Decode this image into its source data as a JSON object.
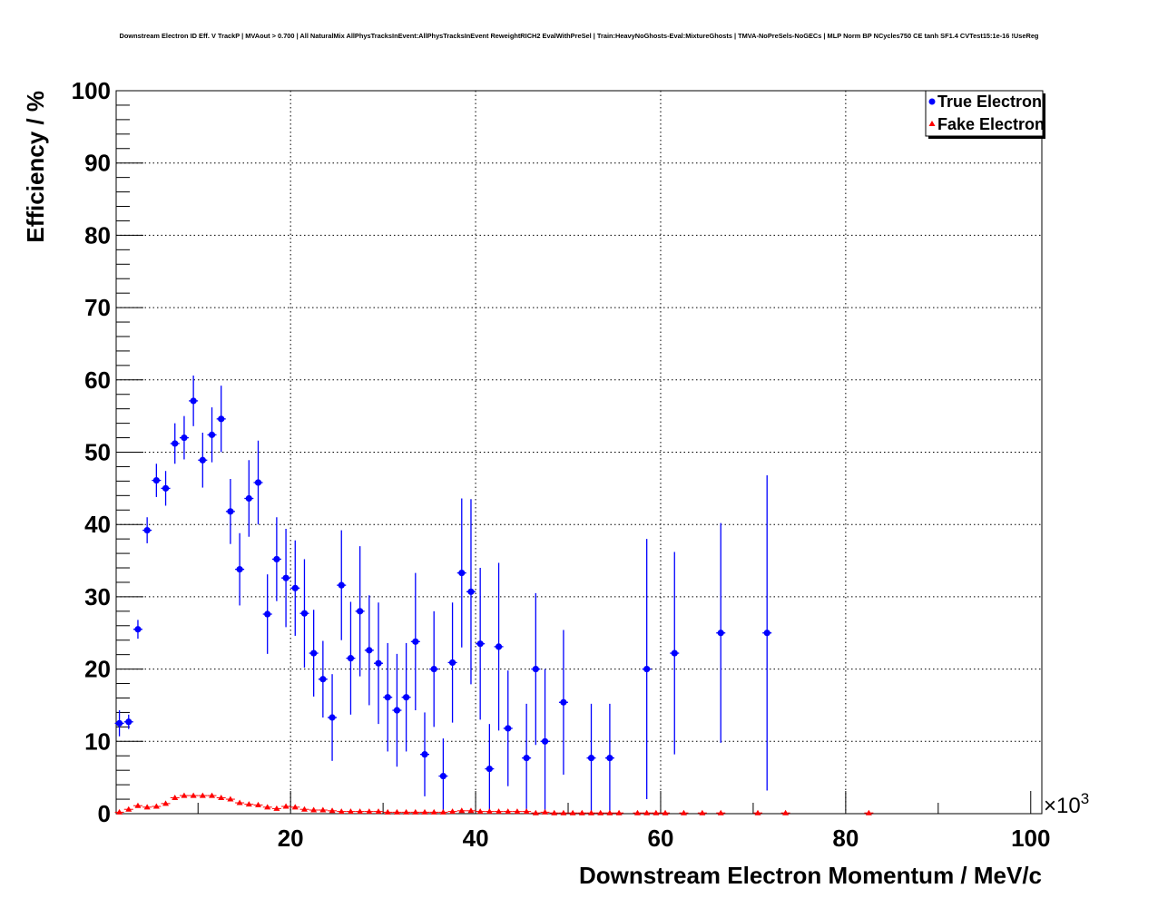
{
  "chart_data": {
    "type": "scatter",
    "title": "Downstream Electron ID Eff. V TrackP | MVAout > 0.700 | All NaturalMix AllPhysTracksInEvent:AllPhysTracksInEvent ReweightRICH2 EvalWithPreSel | Train:HeavyNoGhosts-Eval:MixtureGhosts | TMVA-NoPreSels-NoGECs | MLP Norm BP NCycles750 CE tanh SF1.4 CVTest15:1e-16 !UseReg",
    "xlabel": "Downstream Electron Momentum / MeV/c",
    "ylabel": "Efficiency / %",
    "x_multiplier": "×10",
    "x_multiplier_exp": "3",
    "xlim": [
      1.15,
      101.2
    ],
    "ylim": [
      0,
      100
    ],
    "xticks": [
      "20",
      "40",
      "60",
      "80",
      "100"
    ],
    "yticks": [
      "0",
      "10",
      "20",
      "30",
      "40",
      "50",
      "60",
      "70",
      "80",
      "90",
      "100"
    ],
    "grid": true,
    "legend_position": "top-right",
    "series": [
      {
        "name": "True Electron",
        "color": "#0000ff",
        "marker": "circle",
        "points": [
          [
            1.5,
            12.5,
            1.8
          ],
          [
            2.5,
            12.7,
            1
          ],
          [
            3.5,
            25.5,
            1.3
          ],
          [
            4.5,
            39.2,
            1.8
          ],
          [
            5.5,
            46.1,
            2.3
          ],
          [
            6.5,
            45.0,
            2.4
          ],
          [
            7.5,
            51.2,
            2.8
          ],
          [
            8.5,
            52.0,
            3
          ],
          [
            9.5,
            57.1,
            3.5
          ],
          [
            10.5,
            48.9,
            3.8
          ],
          [
            11.5,
            52.4,
            3.8
          ],
          [
            12.5,
            54.6,
            4.6
          ],
          [
            13.5,
            41.8,
            4.5
          ],
          [
            14.5,
            33.8,
            5
          ],
          [
            15.5,
            43.6,
            5.3
          ],
          [
            16.5,
            45.8,
            5.8
          ],
          [
            17.5,
            27.6,
            5.5
          ],
          [
            18.5,
            35.2,
            5.8
          ],
          [
            19.5,
            32.6,
            6.8
          ],
          [
            20.5,
            31.2,
            6.6
          ],
          [
            21.5,
            27.7,
            7.5
          ],
          [
            22.5,
            22.2,
            6
          ],
          [
            23.5,
            18.6,
            5.3
          ],
          [
            24.5,
            13.3,
            6
          ],
          [
            25.5,
            31.6,
            7.6
          ],
          [
            26.5,
            21.5,
            7.8
          ],
          [
            27.5,
            28.0,
            9
          ],
          [
            28.5,
            22.6,
            7.6
          ],
          [
            29.5,
            20.8,
            8.4
          ],
          [
            30.5,
            16.1,
            7.5
          ],
          [
            31.5,
            14.3,
            7.8
          ],
          [
            32.5,
            16.1,
            7.5
          ],
          [
            33.5,
            23.8,
            9.5
          ],
          [
            34.5,
            8.2,
            5.8
          ],
          [
            35.5,
            20.0,
            8
          ],
          [
            36.5,
            5.2,
            5.2
          ],
          [
            37.5,
            20.9,
            8.3
          ],
          [
            38.5,
            33.3,
            10.3
          ],
          [
            39.5,
            30.7,
            12.8
          ],
          [
            40.5,
            23.5,
            10.5
          ],
          [
            41.5,
            6.2,
            6.2
          ],
          [
            42.5,
            23.1,
            11.6
          ],
          [
            43.5,
            11.8,
            8
          ],
          [
            45.5,
            7.7,
            7.5
          ],
          [
            46.5,
            20.0,
            10.5
          ],
          [
            47.5,
            10.0,
            10
          ],
          [
            49.5,
            15.4,
            10
          ],
          [
            52.5,
            7.7,
            7.5
          ],
          [
            54.5,
            7.7,
            7.5
          ],
          [
            58.5,
            20.0,
            18
          ],
          [
            61.5,
            22.2,
            14
          ],
          [
            66.5,
            25.0,
            15.2
          ],
          [
            71.5,
            25.0,
            21.8
          ]
        ]
      },
      {
        "name": "Fake Electron",
        "color": "#ff0000",
        "marker": "triangle",
        "points": [
          [
            1.5,
            0.2
          ],
          [
            2.5,
            0.6
          ],
          [
            3.5,
            1.1
          ],
          [
            4.5,
            0.9
          ],
          [
            5.5,
            1.0
          ],
          [
            6.5,
            1.4
          ],
          [
            7.5,
            2.2
          ],
          [
            8.5,
            2.5
          ],
          [
            9.5,
            2.5
          ],
          [
            10.5,
            2.5
          ],
          [
            11.5,
            2.5
          ],
          [
            12.5,
            2.2
          ],
          [
            13.5,
            2.0
          ],
          [
            14.5,
            1.5
          ],
          [
            15.5,
            1.3
          ],
          [
            16.5,
            1.2
          ],
          [
            17.5,
            0.9
          ],
          [
            18.5,
            0.7
          ],
          [
            19.5,
            1.0
          ],
          [
            20.5,
            0.9
          ],
          [
            21.5,
            0.6
          ],
          [
            22.5,
            0.5
          ],
          [
            23.5,
            0.5
          ],
          [
            24.5,
            0.4
          ],
          [
            25.5,
            0.3
          ],
          [
            26.5,
            0.3
          ],
          [
            27.5,
            0.3
          ],
          [
            28.5,
            0.3
          ],
          [
            29.5,
            0.3
          ],
          [
            30.5,
            0.2
          ],
          [
            31.5,
            0.2
          ],
          [
            32.5,
            0.2
          ],
          [
            33.5,
            0.2
          ],
          [
            34.5,
            0.2
          ],
          [
            35.5,
            0.2
          ],
          [
            36.5,
            0.2
          ],
          [
            37.5,
            0.3
          ],
          [
            38.5,
            0.4
          ],
          [
            39.5,
            0.4
          ],
          [
            40.5,
            0.3
          ],
          [
            41.5,
            0.3
          ],
          [
            42.5,
            0.3
          ],
          [
            43.5,
            0.3
          ],
          [
            44.5,
            0.3
          ],
          [
            45.5,
            0.3
          ],
          [
            46.5,
            0.1
          ],
          [
            47.5,
            0.2
          ],
          [
            48.5,
            0.1
          ],
          [
            49.5,
            0.1
          ],
          [
            50.5,
            0.1
          ],
          [
            51.5,
            0.1
          ],
          [
            52.5,
            0.1
          ],
          [
            53.5,
            0.1
          ],
          [
            54.5,
            0.1
          ],
          [
            55.5,
            0.1
          ],
          [
            57.5,
            0.1
          ],
          [
            58.5,
            0.1
          ],
          [
            59.5,
            0.1
          ],
          [
            60.5,
            0.1
          ],
          [
            62.5,
            0.1
          ],
          [
            64.5,
            0.1
          ],
          [
            66.5,
            0.1
          ],
          [
            70.5,
            0.1
          ],
          [
            73.5,
            0.1
          ],
          [
            82.5,
            0.1
          ]
        ]
      }
    ]
  }
}
